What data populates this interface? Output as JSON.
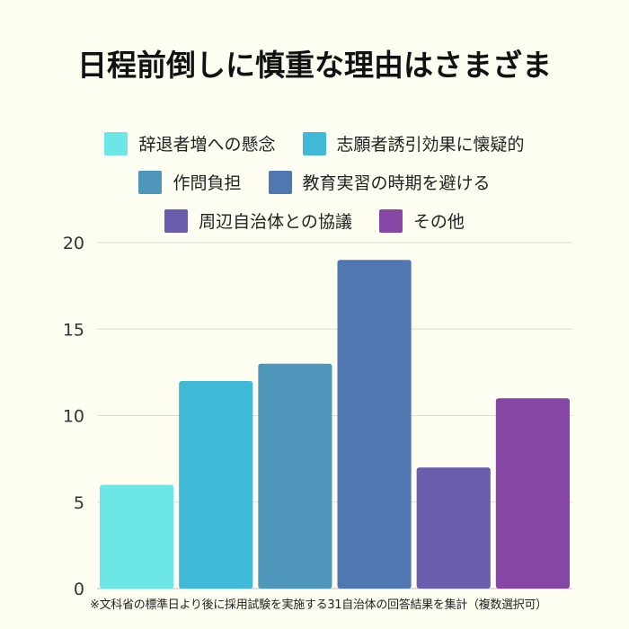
{
  "title": "日程前倒しに慎重な理由はさまざま",
  "footnote": "※文科省の標準日より後に採用試験を実施する31自治体の回答結果を集計（複数選択可）",
  "chart_data": {
    "type": "bar",
    "categories": [
      "辞退者増への懸念",
      "志願者誘引効果に懐疑的",
      "作問負担",
      "教育実習の時期を避ける",
      "周辺自治体との協議",
      "その他"
    ],
    "values": [
      6,
      12,
      13,
      19,
      7,
      11
    ],
    "colors": [
      "#6de6e8",
      "#3fb9d6",
      "#4e97ba",
      "#5077b0",
      "#6a5eac",
      "#8546a4"
    ],
    "ylim": [
      0,
      20
    ],
    "yticks": [
      0,
      5,
      10,
      15,
      20
    ],
    "grid": true,
    "legend_placement": "top"
  }
}
